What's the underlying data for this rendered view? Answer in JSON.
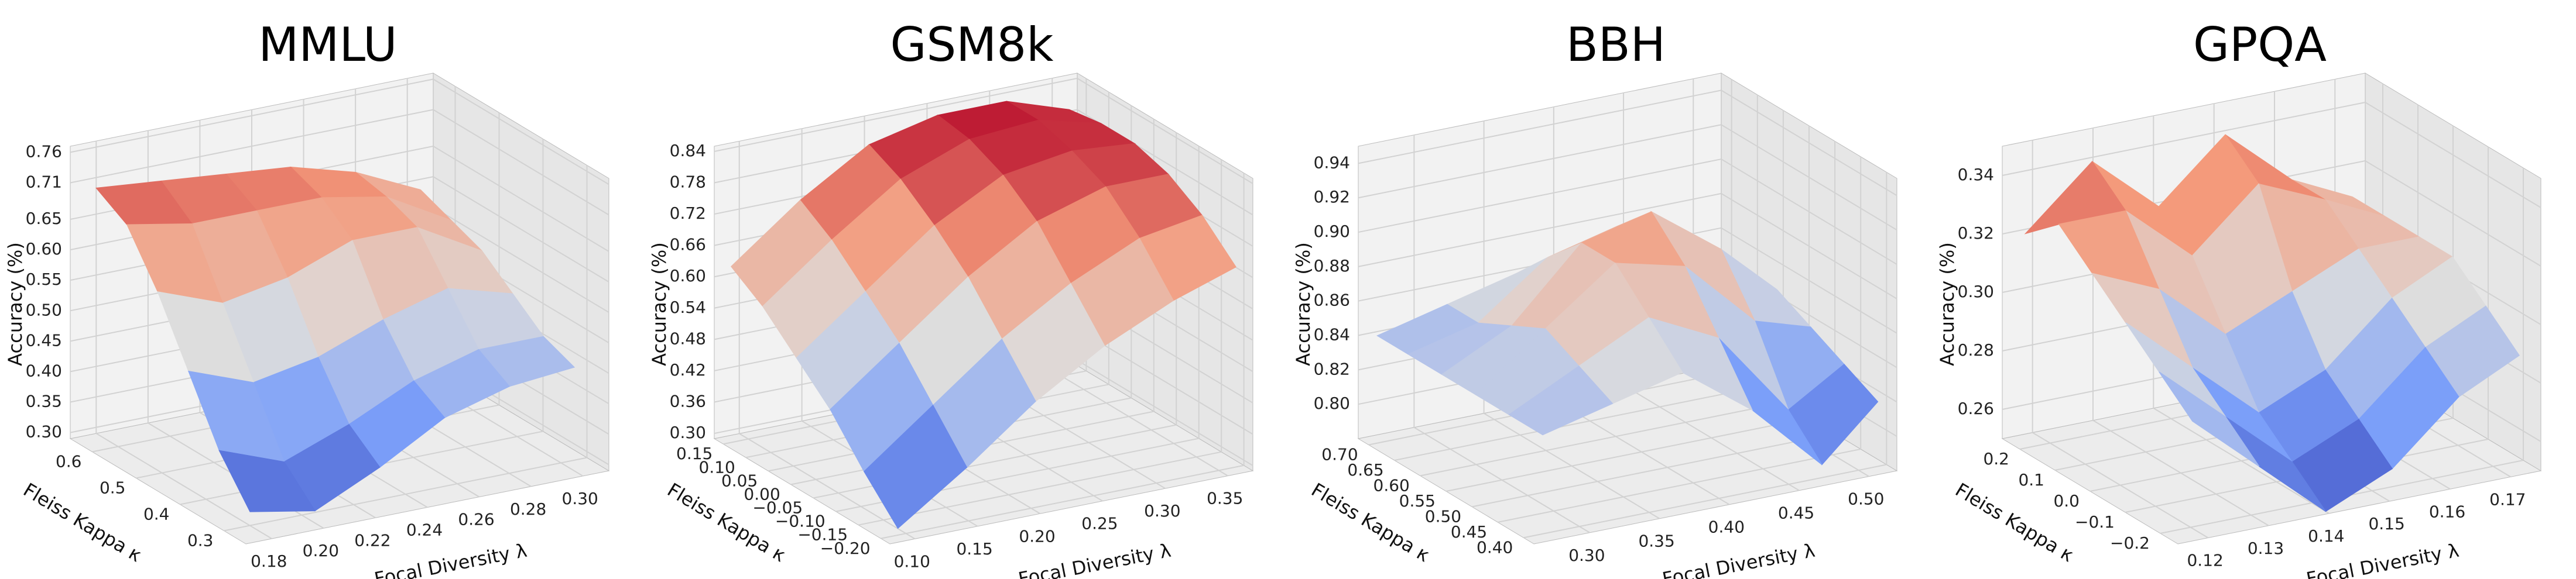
{
  "chart_data": [
    {
      "type": "surface",
      "title": "MMLU",
      "x_label": "Focal Diversity λ",
      "y_label": "Fleiss Kappa κ",
      "z_label": "Accuracy (%)",
      "colormap": "coolwarm",
      "xlim": [
        0.17,
        0.31
      ],
      "ylim": [
        0.25,
        0.65
      ],
      "zlim": [
        0.29,
        0.77
      ],
      "xticks": [
        0.18,
        {
          "value": 0.2,
          "label": "0.20"
        },
        0.22,
        0.24,
        0.26,
        0.28,
        {
          "value": 0.3,
          "label": "0.30"
        }
      ],
      "yticks": [
        0.3,
        0.4,
        0.5,
        0.6
      ],
      "zticks": [
        {
          "value": 0.3,
          "label": "0.30"
        },
        0.35,
        {
          "value": 0.4,
          "label": "0.40"
        },
        0.45,
        {
          "value": 0.5,
          "label": "0.50"
        },
        0.55,
        {
          "value": 0.6,
          "label": "0.60"
        },
        0.65,
        0.71,
        0.76
      ],
      "x": [
        0.175,
        0.2,
        0.225,
        0.25,
        0.275,
        0.3
      ],
      "y": [
        0.27,
        0.34,
        0.41,
        0.48,
        0.55,
        0.62
      ],
      "z": [
        [
          0.33,
          0.31,
          0.36,
          0.42,
          0.45,
          0.46
        ],
        [
          0.4,
          0.36,
          0.4,
          0.45,
          0.48,
          0.48
        ],
        [
          0.5,
          0.46,
          0.48,
          0.52,
          0.55,
          0.52
        ],
        [
          0.6,
          0.56,
          0.58,
          0.62,
          0.62,
          0.56
        ],
        [
          0.68,
          0.66,
          0.66,
          0.66,
          0.64,
          0.58
        ],
        [
          0.71,
          0.7,
          0.69,
          0.68,
          0.65,
          0.6
        ]
      ]
    },
    {
      "type": "surface",
      "title": "GSM8k",
      "x_label": "Focal Diversity λ",
      "y_label": "Fleiss Kappa κ",
      "z_label": "Accuracy (%)",
      "colormap": "coolwarm",
      "xlim": [
        0.08,
        0.37
      ],
      "ylim": [
        -0.22,
        0.17
      ],
      "zlim": [
        0.29,
        0.85
      ],
      "xticks": [
        {
          "value": 0.1,
          "label": "0.10"
        },
        0.15,
        {
          "value": 0.2,
          "label": "0.20"
        },
        0.25,
        {
          "value": 0.3,
          "label": "0.30"
        },
        0.35
      ],
      "yticks": [
        {
          "value": -0.2,
          "label": "−0.20"
        },
        {
          "value": -0.15,
          "label": "−0.15"
        },
        {
          "value": -0.1,
          "label": "−0.10"
        },
        {
          "value": -0.05,
          "label": "−0.05"
        },
        {
          "value": 0,
          "label": "0.00"
        },
        0.05,
        {
          "value": 0.1,
          "label": "0.10"
        },
        0.15
      ],
      "zticks": [
        {
          "value": 0.3,
          "label": "0.30"
        },
        0.36,
        0.42,
        0.48,
        0.54,
        {
          "value": 0.6,
          "label": "0.60"
        },
        0.66,
        0.72,
        0.78,
        0.84
      ],
      "x": [
        0.09,
        0.145,
        0.2,
        0.255,
        0.31,
        0.36
      ],
      "y": [
        -0.21,
        -0.135,
        -0.06,
        0.015,
        0.09,
        0.16
      ],
      "z": [
        [
          0.31,
          0.4,
          0.5,
          0.58,
          0.64,
          0.68
        ],
        [
          0.38,
          0.48,
          0.58,
          0.66,
          0.72,
          0.74
        ],
        [
          0.46,
          0.56,
          0.66,
          0.74,
          0.78,
          0.78
        ],
        [
          0.52,
          0.62,
          0.72,
          0.79,
          0.81,
          0.8
        ],
        [
          0.58,
          0.68,
          0.77,
          0.82,
          0.83,
          0.8
        ],
        [
          0.62,
          0.72,
          0.8,
          0.83,
          0.83,
          0.79
        ]
      ]
    },
    {
      "type": "surface",
      "title": "BBH",
      "x_label": "Focal Diversity λ",
      "y_label": "Fleiss Kappa κ",
      "z_label": "Accuracy (%)",
      "colormap": "coolwarm",
      "xlim": [
        0.26,
        0.52
      ],
      "ylim": [
        0.38,
        0.72
      ],
      "zlim": [
        0.78,
        0.95
      ],
      "xticks": [
        {
          "value": 0.3,
          "label": "0.30"
        },
        0.35,
        {
          "value": 0.4,
          "label": "0.40"
        },
        0.45,
        {
          "value": 0.5,
          "label": "0.50"
        }
      ],
      "yticks": [
        {
          "value": 0.4,
          "label": "0.40"
        },
        0.45,
        {
          "value": 0.5,
          "label": "0.50"
        },
        0.55,
        {
          "value": 0.6,
          "label": "0.60"
        },
        0.65,
        {
          "value": 0.7,
          "label": "0.70"
        }
      ],
      "zticks": [
        {
          "value": 0.8,
          "label": "0.80"
        },
        0.82,
        0.84,
        0.86,
        0.88,
        {
          "value": 0.9,
          "label": "0.90"
        },
        0.92,
        0.94
      ],
      "x": [
        0.27,
        0.32,
        0.37,
        0.42,
        0.47,
        0.51
      ],
      "y": [
        0.39,
        0.455,
        0.52,
        0.585,
        0.65,
        0.71
      ],
      "z": [
        [
          0.84,
          0.85,
          0.86,
          0.83,
          0.79,
          0.82
        ],
        [
          0.84,
          0.86,
          0.88,
          0.86,
          0.81,
          0.83
        ],
        [
          0.84,
          0.87,
          0.9,
          0.89,
          0.85,
          0.84
        ],
        [
          0.84,
          0.86,
          0.9,
          0.91,
          0.88,
          0.85
        ],
        [
          0.84,
          0.85,
          0.88,
          0.89,
          0.87,
          0.85
        ],
        [
          0.84,
          0.85,
          0.86,
          0.87,
          0.86,
          0.85
        ]
      ]
    },
    {
      "type": "surface",
      "title": "GPQA",
      "x_label": "Focal Diversity λ",
      "y_label": "Fleiss Kappa κ",
      "z_label": "Accuracy (%)",
      "colormap": "coolwarm",
      "xlim": [
        0.115,
        0.175
      ],
      "ylim": [
        -0.25,
        0.25
      ],
      "zlim": [
        0.25,
        0.35
      ],
      "xticks": [
        0.12,
        0.13,
        0.14,
        0.15,
        0.16,
        0.17
      ],
      "yticks": [
        {
          "value": -0.2,
          "label": "−0.2"
        },
        {
          "value": -0.1,
          "label": "−0.1"
        },
        {
          "value": 0,
          "label": "0.0"
        },
        0.1,
        0.2
      ],
      "zticks": [
        0.26,
        0.28,
        {
          "value": 0.3,
          "label": "0.30"
        },
        0.32,
        0.34
      ],
      "x": [
        0.118,
        0.129,
        0.14,
        0.151,
        0.162,
        0.172
      ],
      "y": [
        -0.24,
        -0.145,
        -0.05,
        0.045,
        0.14,
        0.235
      ],
      "z": [
        [
          0.29,
          0.27,
          0.25,
          0.26,
          0.28,
          0.29
        ],
        [
          0.3,
          0.28,
          0.26,
          0.27,
          0.29,
          0.3
        ],
        [
          0.31,
          0.29,
          0.27,
          0.28,
          0.3,
          0.31
        ],
        [
          0.32,
          0.31,
          0.29,
          0.3,
          0.31,
          0.31
        ],
        [
          0.33,
          0.33,
          0.31,
          0.33,
          0.32,
          0.31
        ],
        [
          0.32,
          0.34,
          0.32,
          0.34,
          0.32,
          0.31
        ]
      ]
    }
  ]
}
